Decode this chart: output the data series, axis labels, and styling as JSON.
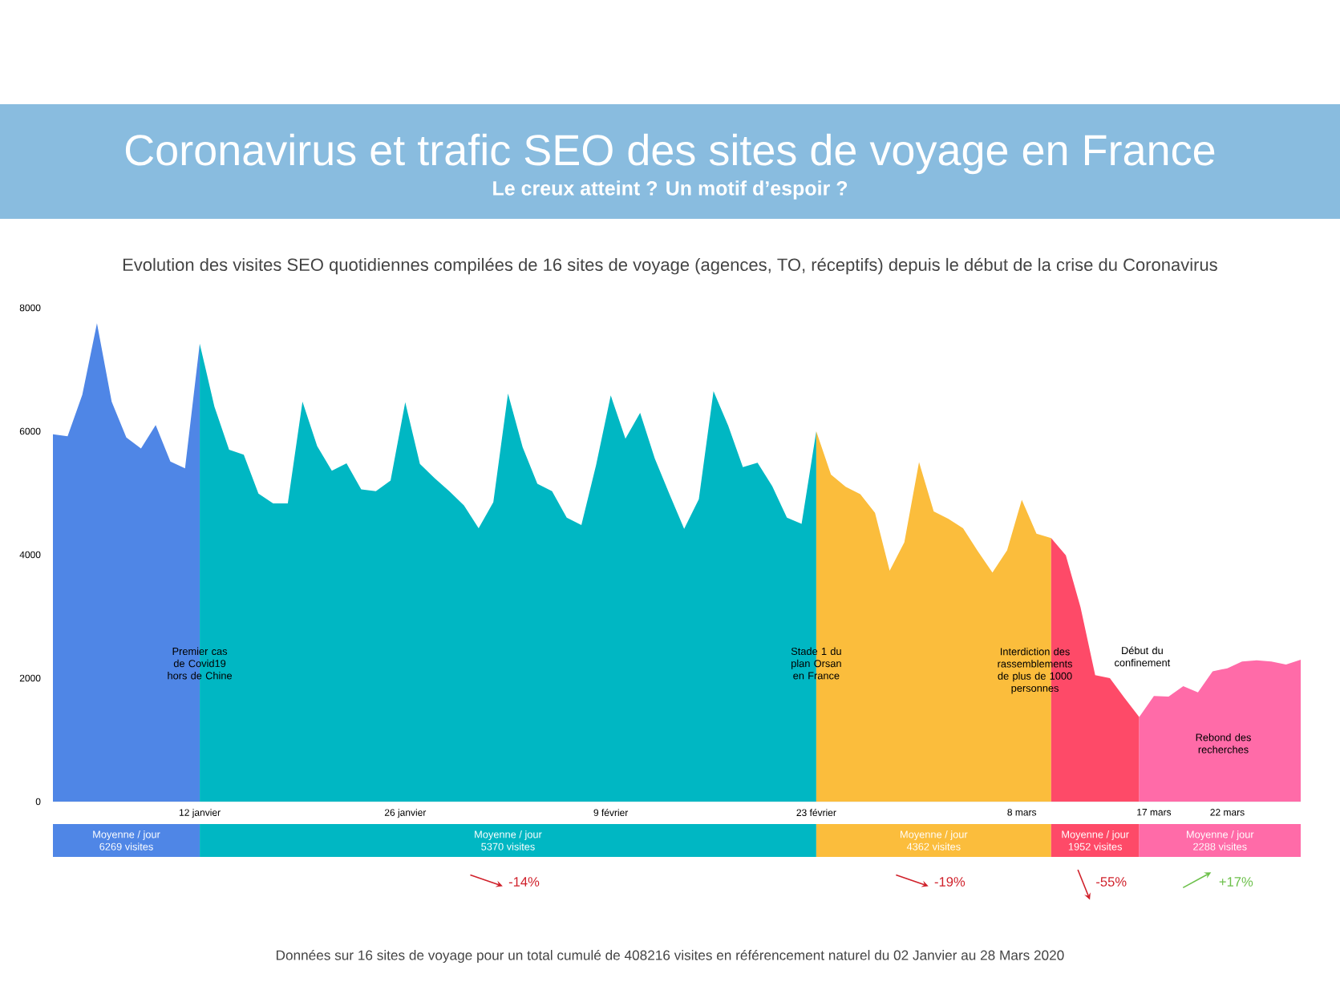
{
  "chart_data": {
    "type": "area",
    "title": "Coronavirus et trafic SEO des sites de voyage en France",
    "subtitle": "Le creux atteint ? Un motif d’espoir ?",
    "series": [
      {
        "color": "#4f86e6",
        "x": [
          "2020-01-02",
          "2020-01-03",
          "2020-01-04",
          "2020-01-05",
          "2020-01-06",
          "2020-01-07",
          "2020-01-08",
          "2020-01-09",
          "2020-01-10",
          "2020-01-11",
          "2020-01-12"
        ],
        "values": [
          5950,
          5920,
          6590,
          7750,
          6480,
          5900,
          5720,
          6100,
          5510,
          5400,
          7420
        ]
      },
      {
        "color": "#00b7c3",
        "x": [
          "2020-01-12",
          "2020-01-13",
          "2020-01-14",
          "2020-01-15",
          "2020-01-16",
          "2020-01-17",
          "2020-01-18",
          "2020-01-19",
          "2020-01-20",
          "2020-01-21",
          "2020-01-22",
          "2020-01-23",
          "2020-01-24",
          "2020-01-25",
          "2020-01-26",
          "2020-01-27",
          "2020-01-28",
          "2020-01-29",
          "2020-01-30",
          "2020-01-31",
          "2020-02-01",
          "2020-02-02",
          "2020-02-03",
          "2020-02-04",
          "2020-02-05",
          "2020-02-06",
          "2020-02-07",
          "2020-02-08",
          "2020-02-09",
          "2020-02-10",
          "2020-02-11",
          "2020-02-12",
          "2020-02-13",
          "2020-02-14",
          "2020-02-15",
          "2020-02-16",
          "2020-02-17",
          "2020-02-18",
          "2020-02-19",
          "2020-02-20",
          "2020-02-21",
          "2020-02-22",
          "2020-02-23"
        ],
        "values": [
          7420,
          6400,
          5700,
          5620,
          4990,
          4830,
          4830,
          6480,
          5760,
          5360,
          5480,
          5060,
          5030,
          5200,
          6470,
          5470,
          5240,
          5030,
          4800,
          4430,
          4850,
          6610,
          5740,
          5150,
          5030,
          4600,
          4480,
          5450,
          6580,
          5880,
          6300,
          5560,
          4980,
          4420,
          4900,
          6650,
          6090,
          5420,
          5490,
          5110,
          4600,
          4500,
          6000
        ]
      },
      {
        "color": "#fbbd3c",
        "x": [
          "2020-02-23",
          "2020-02-24",
          "2020-02-25",
          "2020-02-26",
          "2020-02-27",
          "2020-02-28",
          "2020-02-29",
          "2020-03-01",
          "2020-03-02",
          "2020-03-03",
          "2020-03-04",
          "2020-03-05",
          "2020-03-06",
          "2020-03-07",
          "2020-03-08",
          "2020-03-09",
          "2020-03-10"
        ],
        "values": [
          6000,
          5300,
          5100,
          4980,
          4680,
          3740,
          4200,
          5500,
          4700,
          4580,
          4430,
          4060,
          3710,
          4070,
          4890,
          4340,
          4270
        ]
      },
      {
        "color": "#fe4a68",
        "x": [
          "2020-03-10",
          "2020-03-11",
          "2020-03-12",
          "2020-03-13",
          "2020-03-14",
          "2020-03-15",
          "2020-03-16"
        ],
        "values": [
          4270,
          3990,
          3150,
          2050,
          2000,
          1680,
          1370
        ]
      },
      {
        "color": "#ff6ba8",
        "x": [
          "2020-03-16",
          "2020-03-17",
          "2020-03-18",
          "2020-03-19",
          "2020-03-20",
          "2020-03-21",
          "2020-03-22",
          "2020-03-23",
          "2020-03-24",
          "2020-03-25",
          "2020-03-26",
          "2020-03-27"
        ],
        "values": [
          1370,
          1710,
          1700,
          1870,
          1770,
          2110,
          2160,
          2270,
          2290,
          2270,
          2220,
          2300
        ]
      }
    ],
    "xlim": [
      "2020-01-02",
      "2020-03-27"
    ],
    "xticks": [
      {
        "value": "2020-01-12",
        "label": "12 janvier"
      },
      {
        "value": "2020-01-26",
        "label": "26 janvier"
      },
      {
        "value": "2020-02-09",
        "label": "9 février"
      },
      {
        "value": "2020-02-23",
        "label": "23 février"
      },
      {
        "value": "2020-03-08",
        "label": "8 mars"
      },
      {
        "value": "2020-03-17",
        "label": "17 mars"
      },
      {
        "value": "2020-03-22",
        "label": "22 mars"
      }
    ],
    "ylim": [
      0,
      8000
    ],
    "yticks": [
      0,
      2000,
      4000,
      6000,
      8000
    ],
    "annotations": [
      "Evolution des visites SEO quotidiennes compilées de 16 sites de voyage (agences, TO, réceptifs) depuis le début de la crise du Coronavirus",
      {
        "text": "Premier cas de Covid19 hors de Chine",
        "x": "2020-01-12",
        "y": 2240
      },
      {
        "text": "Stade 1 du plan Orsan en France",
        "x": "2020-02-23",
        "y": 2240
      },
      "Interdiction des rassemblements de plus de 1000 personnes",
      "Début du confinement",
      "Rebond des recherches",
      "Moyenne / jour",
      "6269 visites",
      "Moyenne / jour",
      "5370 visites",
      "Moyenne / jour",
      "4362 visites",
      "Moyenne / jour",
      "1952 visites",
      "Moyenne / jour",
      "2288 visites",
      "-14%",
      "-19%",
      "-55%",
      "+17%",
      "Données sur 16 sites de voyage pour un total cumulé de 408216 visites en référencement naturel du 02 Janvier au 28 Mars 2020"
    ]
  }
}
